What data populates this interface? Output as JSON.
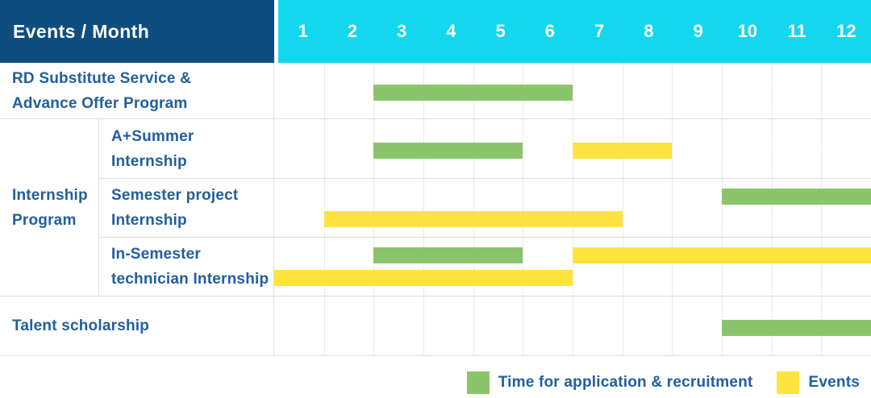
{
  "colors": {
    "header_bg": "#0d4e7f",
    "months_bg": "#12d7ee",
    "label_text": "#215e9e",
    "green": "#8bc56b",
    "yellow": "#ffe33f",
    "grid_solid": "#dddddd",
    "grid_dotted": "#d8d8d8"
  },
  "header": {
    "title": "Events / Month",
    "months": [
      "1",
      "2",
      "3",
      "4",
      "5",
      "6",
      "7",
      "8",
      "9",
      "10",
      "11",
      "12"
    ]
  },
  "group": {
    "label_lines": [
      "Internship",
      "Program"
    ]
  },
  "rows": [
    {
      "label_lines": [
        "RD Substitute Service &",
        "Advance Offer Program"
      ],
      "bars": [
        {
          "kind": "green",
          "start": 3,
          "end": 6,
          "track": "mid"
        }
      ]
    },
    {
      "label_lines": [
        "A+Summer",
        "Internship"
      ],
      "bars": [
        {
          "kind": "green",
          "start": 3,
          "end": 5,
          "track": "mid"
        },
        {
          "kind": "yellow",
          "start": 7,
          "end": 8,
          "track": "mid"
        }
      ]
    },
    {
      "label_lines": [
        "Semester project",
        "Internship"
      ],
      "bars": [
        {
          "kind": "green",
          "start": 10,
          "end": 12,
          "track": "upper"
        },
        {
          "kind": "yellow",
          "start": 2,
          "end": 7,
          "track": "lower"
        }
      ]
    },
    {
      "label_lines": [
        "In-Semester",
        "technician Internship"
      ],
      "bars": [
        {
          "kind": "green",
          "start": 3,
          "end": 5,
          "track": "upper"
        },
        {
          "kind": "yellow",
          "start": 7,
          "end": 12,
          "track": "upper"
        },
        {
          "kind": "yellow",
          "start": 1,
          "end": 6,
          "track": "lower"
        }
      ]
    },
    {
      "label_lines": [
        "Talent scholarship"
      ],
      "bars": [
        {
          "kind": "green",
          "start": 10,
          "end": 12,
          "track": "mid"
        }
      ]
    }
  ],
  "legend": [
    {
      "kind": "green",
      "label": "Time for application & recruitment"
    },
    {
      "kind": "yellow",
      "label": "Events"
    }
  ],
  "chart_data": {
    "type": "bar",
    "subtype": "gantt-schedule",
    "title": "Events / Month",
    "xlabel": "Month",
    "x_ticks": [
      1,
      2,
      3,
      4,
      5,
      6,
      7,
      8,
      9,
      10,
      11,
      12
    ],
    "x_range": [
      1,
      12
    ],
    "grid": "dotted-vertical-month-lines",
    "legend_position": "bottom-right",
    "legend": [
      "Time for application & recruitment",
      "Events"
    ],
    "series": [
      {
        "row": "RD Substitute Service & Advance Offer Program",
        "group": null,
        "bars": [
          {
            "category": "Time for application & recruitment",
            "start_month": 3,
            "end_month": 6
          }
        ]
      },
      {
        "row": "A+Summer Internship",
        "group": "Internship Program",
        "bars": [
          {
            "category": "Time for application & recruitment",
            "start_month": 3,
            "end_month": 5
          },
          {
            "category": "Events",
            "start_month": 7,
            "end_month": 8
          }
        ]
      },
      {
        "row": "Semester project Internship",
        "group": "Internship Program",
        "bars": [
          {
            "category": "Time for application & recruitment",
            "start_month": 10,
            "end_month": 12
          },
          {
            "category": "Events",
            "start_month": 2,
            "end_month": 7
          }
        ]
      },
      {
        "row": "In-Semester technician Internship",
        "group": "Internship Program",
        "bars": [
          {
            "category": "Time for application & recruitment",
            "start_month": 3,
            "end_month": 5
          },
          {
            "category": "Events",
            "start_month": 7,
            "end_month": 12
          },
          {
            "category": "Events",
            "start_month": 1,
            "end_month": 6
          }
        ]
      },
      {
        "row": "Talent scholarship",
        "group": null,
        "bars": [
          {
            "category": "Time for application & recruitment",
            "start_month": 10,
            "end_month": 12
          }
        ]
      }
    ]
  }
}
